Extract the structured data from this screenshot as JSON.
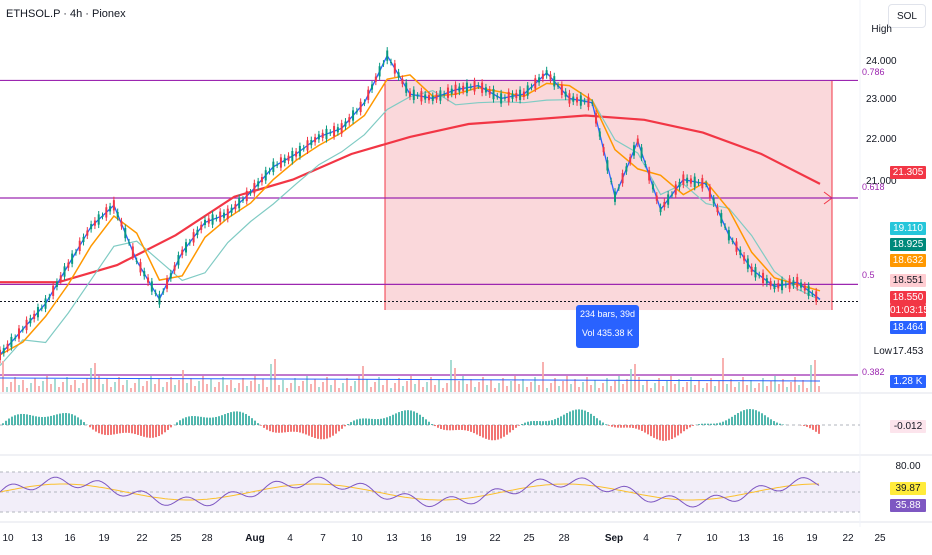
{
  "header": {
    "symbol_title": "ETHSOL.P · 4h · Pionex",
    "unit": "SOL",
    "high_label": "High",
    "low_label": "Low"
  },
  "price_axis": {
    "ticks": [
      "24.000",
      "23.000",
      "22.000",
      "21.000"
    ],
    "badges": [
      {
        "value": "21.305",
        "color": "#f23645"
      },
      {
        "value": "19.110",
        "color": "#26c6da"
      },
      {
        "value": "18.925",
        "color": "#00897b"
      },
      {
        "value": "18.632",
        "color": "#ff9800"
      },
      {
        "value": "18.551",
        "color": "#ffcdd2"
      },
      {
        "value": "18.550",
        "color": "#f23645"
      },
      {
        "value": "01:03:15",
        "color": "#f23645"
      },
      {
        "value": "18.464",
        "color": "#2962ff"
      },
      {
        "value": "17.453",
        "color": "#ffffff"
      },
      {
        "value": "1.28 K",
        "color": "#2962ff"
      },
      {
        "value": "-0.012",
        "color": "#fce4ec"
      },
      {
        "value": "80.00",
        "color": "#ffffff"
      },
      {
        "value": "39.87",
        "color": "#ffeb3b"
      },
      {
        "value": "35.88",
        "color": "#7e57c2"
      }
    ]
  },
  "fib_levels": [
    {
      "label": "0.786",
      "price": 23.72
    },
    {
      "label": "0.618",
      "price": 20.97
    },
    {
      "label": "0.5",
      "price": 18.95
    },
    {
      "label": "0.382",
      "price": 16.83
    }
  ],
  "measure_tooltip": {
    "bars": "234 bars, 39d",
    "volume": "Vol 435.38 K"
  },
  "x_axis": [
    "10",
    "13",
    "16",
    "19",
    "22",
    "25",
    "28",
    "Aug",
    "4",
    "7",
    "10",
    "13",
    "16",
    "19",
    "22",
    "25",
    "28",
    "Sep",
    "4",
    "7",
    "10",
    "13",
    "16",
    "19",
    "22",
    "25"
  ],
  "chart_data": {
    "type": "line",
    "title": "ETHSOL.P · 4h · Pionex",
    "ylabel": "SOL",
    "ylim": [
      16.9,
      24.9
    ],
    "series": [
      {
        "values": [
          17.3,
          17.9,
          18.5,
          19.4,
          20.3,
          20.8,
          19.5,
          18.6,
          19.7,
          20.4,
          20.6,
          21.1,
          21.7,
          22.0,
          22.4,
          22.6,
          23.2,
          24.3,
          23.4,
          23.3,
          23.5,
          23.6,
          23.3,
          23.4,
          23.9,
          23.3,
          23.2,
          21.0,
          22.3,
          20.7,
          21.4,
          21.3,
          20.1,
          19.3,
          18.9,
          19.0,
          18.6
        ]
      },
      {
        "values": [
          19.0,
          19.0,
          19.4,
          20.1,
          21.0,
          21.4,
          22.0,
          22.4,
          22.7,
          22.8,
          22.9,
          22.8,
          22.5,
          22.0,
          21.3
        ]
      }
    ],
    "sub_panels": [
      {
        "name": "Volume",
        "last": "1.28 K"
      },
      {
        "name": "Oscillator",
        "last": "-0.012"
      },
      {
        "name": "RSI",
        "values": [
          "80.00",
          "39.87",
          "35.88"
        ]
      }
    ]
  }
}
